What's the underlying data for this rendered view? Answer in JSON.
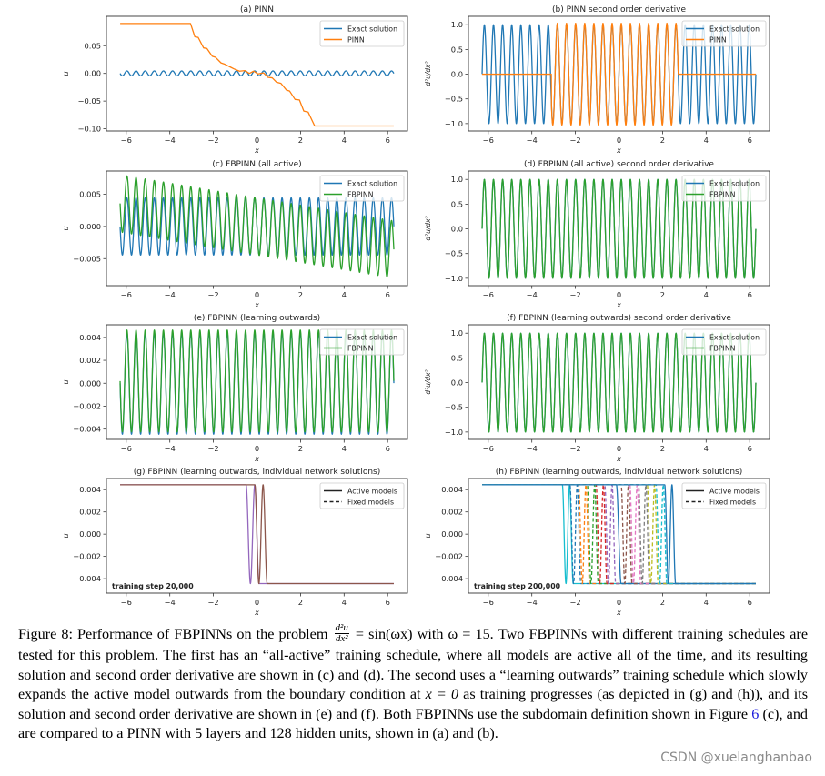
{
  "colors": {
    "blue": "#1f77b4",
    "orange": "#ff7f0e",
    "green": "#2ca02c",
    "red": "#d62728",
    "purple": "#9467bd",
    "brown": "#8c564b",
    "pink": "#e377c2",
    "gray": "#7f7f7f",
    "olive": "#bcbd22",
    "cyan": "#17becf"
  },
  "chart_data": [
    {
      "id": "a",
      "type": "line",
      "title": "(a) PINN",
      "xlabel": "x",
      "ylabel": "u",
      "xlim": [
        -6.91,
        6.91
      ],
      "ylim": [
        -0.104,
        0.103
      ],
      "xticks": [
        -6,
        -4,
        -2,
        0,
        2,
        4,
        6
      ],
      "xtick_labels": [
        "−6",
        "−4",
        "−2",
        "0",
        "2",
        "4",
        "6"
      ],
      "yticks": [
        0.05,
        0,
        -0.05,
        -0.1
      ],
      "ytick_labels": [
        "0.05",
        "0.00",
        "−0.05",
        "−0.10"
      ],
      "legend": {
        "placement": "upper-right",
        "entries": [
          {
            "label": "Exact solution",
            "color": "#1f77b4",
            "style": "solid"
          },
          {
            "label": "PINN",
            "color": "#ff7f0e",
            "style": "solid"
          }
        ]
      },
      "series": [
        {
          "name": "Exact solution",
          "color": "#1f77b4",
          "expression": "-sin(15*x)/225",
          "x_range": [
            -6.283,
            6.283
          ]
        },
        {
          "name": "PINN",
          "color": "#ff7f0e",
          "points": [
            [
              -6.28,
              0.09
            ],
            [
              -3.05,
              0.09
            ],
            [
              -2.85,
              0.066
            ],
            [
              -2.7,
              0.065
            ],
            [
              -2.45,
              0.046
            ],
            [
              -2.3,
              0.045
            ],
            [
              -2.05,
              0.031
            ],
            [
              -1.9,
              0.029
            ],
            [
              -1.65,
              0.019
            ],
            [
              -1.5,
              0.017
            ],
            [
              -1.2,
              0.011
            ],
            [
              -1.05,
              0.008
            ],
            [
              -0.8,
              0.004
            ],
            [
              -0.55,
              0.005
            ],
            [
              -0.35,
              0.0
            ],
            [
              -0.15,
              0.004
            ],
            [
              0.05,
              -0.001
            ],
            [
              0.3,
              0.001
            ],
            [
              0.5,
              -0.007
            ],
            [
              0.7,
              -0.008
            ],
            [
              0.9,
              -0.016
            ],
            [
              1.1,
              -0.018
            ],
            [
              1.35,
              -0.03
            ],
            [
              1.5,
              -0.032
            ],
            [
              1.75,
              -0.047
            ],
            [
              1.95,
              -0.048
            ],
            [
              2.15,
              -0.068
            ],
            [
              2.35,
              -0.07
            ],
            [
              2.65,
              -0.095
            ],
            [
              6.28,
              -0.095
            ]
          ]
        }
      ]
    },
    {
      "id": "b",
      "type": "line",
      "title": "(b) PINN second order derivative",
      "xlabel": "x",
      "ylabel": "d²u/dx²",
      "xlim": [
        -6.91,
        6.91
      ],
      "ylim": [
        -1.15,
        1.17
      ],
      "xticks": [
        -6,
        -4,
        -2,
        0,
        2,
        4,
        6
      ],
      "xtick_labels": [
        "−6",
        "−4",
        "−2",
        "0",
        "2",
        "4",
        "6"
      ],
      "yticks": [
        1,
        0.5,
        0,
        -0.5,
        -1
      ],
      "ytick_labels": [
        "1.0",
        "0.5",
        "0.0",
        "−0.5",
        "−1.0"
      ],
      "legend": {
        "placement": "upper-right",
        "entries": [
          {
            "label": "Exact solution",
            "color": "#1f77b4",
            "style": "solid"
          },
          {
            "label": "PINN",
            "color": "#ff7f0e",
            "style": "solid"
          }
        ]
      },
      "series": [
        {
          "name": "Exact solution",
          "color": "#1f77b4",
          "expression": "sin(15*x)",
          "x_range": [
            -6.283,
            6.283
          ]
        },
        {
          "name": "PINN",
          "color": "#ff7f0e",
          "expression": "(x>-3.1&&x<2.72)?1.03*sin(15*x):0",
          "x_range": [
            -6.283,
            6.283
          ]
        }
      ]
    },
    {
      "id": "c",
      "type": "line",
      "title": "(c) FBPINN (all active)",
      "xlabel": "x",
      "ylabel": "u",
      "xlim": [
        -6.91,
        6.91
      ],
      "ylim": [
        -0.0092,
        0.0086
      ],
      "xticks": [
        -6,
        -4,
        -2,
        0,
        2,
        4,
        6
      ],
      "xtick_labels": [
        "−6",
        "−4",
        "−2",
        "0",
        "2",
        "4",
        "6"
      ],
      "yticks": [
        0.005,
        0,
        -0.005
      ],
      "ytick_labels": [
        "0.005",
        "0.000",
        "−0.005"
      ],
      "legend": {
        "placement": "upper-right",
        "entries": [
          {
            "label": "Exact solution",
            "color": "#1f77b4",
            "style": "solid"
          },
          {
            "label": "FBPINN",
            "color": "#2ca02c",
            "style": "solid"
          }
        ]
      },
      "series": [
        {
          "name": "Exact solution",
          "color": "#1f77b4",
          "expression": "-sin(15*x)/225",
          "x_range": [
            -6.283,
            6.283
          ]
        },
        {
          "name": "FBPINN",
          "color": "#2ca02c",
          "expression": "-sin(15*x)/225-0.00057*x",
          "x_range": [
            -6.283,
            6.283
          ]
        }
      ]
    },
    {
      "id": "d",
      "type": "line",
      "title": "(d) FBPINN (all active) second order derivative",
      "xlabel": "x",
      "ylabel": "d²u/dx²",
      "xlim": [
        -6.91,
        6.91
      ],
      "ylim": [
        -1.15,
        1.17
      ],
      "xticks": [
        -6,
        -4,
        -2,
        0,
        2,
        4,
        6
      ],
      "xtick_labels": [
        "−6",
        "−4",
        "−2",
        "0",
        "2",
        "4",
        "6"
      ],
      "yticks": [
        1,
        0.5,
        0,
        -0.5,
        -1
      ],
      "ytick_labels": [
        "1.0",
        "0.5",
        "0.0",
        "−0.5",
        "−1.0"
      ],
      "legend": {
        "placement": "upper-right",
        "entries": [
          {
            "label": "Exact solution",
            "color": "#1f77b4",
            "style": "solid"
          },
          {
            "label": "FBPINN",
            "color": "#2ca02c",
            "style": "solid"
          }
        ]
      },
      "series": [
        {
          "name": "Exact solution",
          "color": "#1f77b4",
          "expression": "sin(15*x)",
          "x_range": [
            -6.283,
            6.283
          ]
        },
        {
          "name": "FBPINN",
          "color": "#2ca02c",
          "expression": "sin(15*x)",
          "x_range": [
            -6.283,
            6.283
          ]
        }
      ]
    },
    {
      "id": "e",
      "type": "line",
      "title": "(e) FBPINN (learning outwards)",
      "xlabel": "x",
      "ylabel": "u",
      "xlim": [
        -6.91,
        6.91
      ],
      "ylim": [
        -0.0049,
        0.0051
      ],
      "xticks": [
        -6,
        -4,
        -2,
        0,
        2,
        4,
        6
      ],
      "xtick_labels": [
        "−6",
        "−4",
        "−2",
        "0",
        "2",
        "4",
        "6"
      ],
      "yticks": [
        0.004,
        0.002,
        0,
        -0.002,
        -0.004
      ],
      "ytick_labels": [
        "0.004",
        "0.002",
        "0.000",
        "−0.002",
        "−0.004"
      ],
      "legend": {
        "placement": "upper-right",
        "entries": [
          {
            "label": "Exact solution",
            "color": "#1f77b4",
            "style": "solid"
          },
          {
            "label": "FBPINN",
            "color": "#2ca02c",
            "style": "solid"
          }
        ]
      },
      "series": [
        {
          "name": "Exact solution",
          "color": "#1f77b4",
          "expression": "-sin(15*x)/225",
          "x_range": [
            -6.283,
            6.283
          ]
        },
        {
          "name": "FBPINN",
          "color": "#2ca02c",
          "expression": "-sin(15*x)/225+0.0002",
          "x_range": [
            -6.283,
            6.283
          ]
        }
      ]
    },
    {
      "id": "f",
      "type": "line",
      "title": "(f) FBPINN (learning outwards) second order derivative",
      "xlabel": "x",
      "ylabel": "d²u/dx²",
      "xlim": [
        -6.91,
        6.91
      ],
      "ylim": [
        -1.15,
        1.17
      ],
      "xticks": [
        -6,
        -4,
        -2,
        0,
        2,
        4,
        6
      ],
      "xtick_labels": [
        "−6",
        "−4",
        "−2",
        "0",
        "2",
        "4",
        "6"
      ],
      "yticks": [
        1,
        0.5,
        0,
        -0.5,
        -1
      ],
      "ytick_labels": [
        "1.0",
        "0.5",
        "0.0",
        "−0.5",
        "−1.0"
      ],
      "legend": {
        "placement": "upper-right",
        "entries": [
          {
            "label": "Exact solution",
            "color": "#1f77b4",
            "style": "solid"
          },
          {
            "label": "FBPINN",
            "color": "#2ca02c",
            "style": "solid"
          }
        ]
      },
      "series": [
        {
          "name": "Exact solution",
          "color": "#1f77b4",
          "expression": "sin(15*x)",
          "x_range": [
            -6.283,
            6.283
          ]
        },
        {
          "name": "FBPINN",
          "color": "#2ca02c",
          "expression": "sin(15*x)",
          "x_range": [
            -6.283,
            6.283
          ]
        }
      ]
    },
    {
      "id": "g",
      "type": "line",
      "title": "(g) FBPINN (learning outwards, individual network solutions)",
      "xlabel": "x",
      "ylabel": "u",
      "xlim": [
        -6.91,
        6.91
      ],
      "ylim": [
        -0.0053,
        0.005
      ],
      "xticks": [
        -6,
        -4,
        -2,
        0,
        2,
        4,
        6
      ],
      "xtick_labels": [
        "−6",
        "−4",
        "−2",
        "0",
        "2",
        "4",
        "6"
      ],
      "yticks": [
        0.004,
        0.002,
        0,
        -0.002,
        -0.004
      ],
      "ytick_labels": [
        "0.004",
        "0.002",
        "0.000",
        "−0.002",
        "−0.004"
      ],
      "annotation": "training step 20,000",
      "legend": {
        "placement": "upper-right",
        "entries": [
          {
            "label": "Active models",
            "color": "#222222",
            "style": "solid"
          },
          {
            "label": "Fixed models",
            "color": "#222222",
            "style": "dashed"
          }
        ]
      },
      "level": 0.00444,
      "x_range": [
        -6.283,
        6.283
      ],
      "models": [
        {
          "color": "#9467bd",
          "style": "solid",
          "range": [
            -0.5,
            0.1
          ],
          "half_cycles": 3
        },
        {
          "color": "#8c564b",
          "style": "solid",
          "range": [
            -0.1,
            0.47
          ],
          "half_cycles": 3
        }
      ]
    },
    {
      "id": "h",
      "type": "line",
      "title": "(h) FBPINN (learning outwards, individual network solutions)",
      "xlabel": "x",
      "ylabel": "u",
      "xlim": [
        -6.91,
        6.91
      ],
      "ylim": [
        -0.0053,
        0.005
      ],
      "xticks": [
        -6,
        -4,
        -2,
        0,
        2,
        4,
        6
      ],
      "xtick_labels": [
        "−6",
        "−4",
        "−2",
        "0",
        "2",
        "4",
        "6"
      ],
      "yticks": [
        0.004,
        0.002,
        0,
        -0.002,
        -0.004
      ],
      "ytick_labels": [
        "0.004",
        "0.002",
        "0.000",
        "−0.002",
        "−0.004"
      ],
      "annotation": "training step 200,000",
      "legend": {
        "placement": "upper-right",
        "entries": [
          {
            "label": "Active models",
            "color": "#222222",
            "style": "solid"
          },
          {
            "label": "Fixed models",
            "color": "#222222",
            "style": "dashed"
          }
        ]
      },
      "level": 0.00444,
      "x_range": [
        -6.283,
        6.283
      ],
      "models": [
        {
          "color": "#17becf",
          "style": "solid",
          "range": [
            -2.6,
            -2.1
          ],
          "half_cycles": 3
        },
        {
          "color": "#1f77b4",
          "style": "dashed",
          "range": [
            -2.25,
            -1.75
          ],
          "half_cycles": 3
        },
        {
          "color": "#ff7f0e",
          "style": "dashed",
          "range": [
            -1.85,
            -1.35
          ],
          "half_cycles": 3
        },
        {
          "color": "#2ca02c",
          "style": "dashed",
          "range": [
            -1.45,
            -0.95
          ],
          "half_cycles": 3
        },
        {
          "color": "#d62728",
          "style": "dashed",
          "range": [
            -1.05,
            -0.55
          ],
          "half_cycles": 3
        },
        {
          "color": "#9467bd",
          "style": "dashed",
          "range": [
            -0.65,
            -0.15
          ],
          "half_cycles": 3
        },
        {
          "color": "#1f77b4",
          "style": "solid",
          "range": [
            -0.12,
            0.1
          ],
          "half_cycles": 1
        },
        {
          "color": "#8c564b",
          "style": "dashed",
          "range": [
            0.1,
            0.6
          ],
          "half_cycles": 3
        },
        {
          "color": "#e377c2",
          "style": "dashed",
          "range": [
            0.5,
            1.0
          ],
          "half_cycles": 3
        },
        {
          "color": "#7f7f7f",
          "style": "dashed",
          "range": [
            0.9,
            1.4
          ],
          "half_cycles": 3
        },
        {
          "color": "#bcbd22",
          "style": "dashed",
          "range": [
            1.3,
            1.8
          ],
          "half_cycles": 3
        },
        {
          "color": "#17becf",
          "style": "dashed",
          "range": [
            1.7,
            2.2
          ],
          "half_cycles": 3
        },
        {
          "color": "#1f77b4",
          "style": "solid",
          "range": [
            2.1,
            2.6
          ],
          "half_cycles": 3
        }
      ]
    }
  ],
  "caption": {
    "p1": "Figure 8: Performance of FBPINNs on the problem ",
    "frac_num": "d²u",
    "frac_den": "dx²",
    "p2": " = sin(ωx) with ω = 15. Two FBPINNs with different training schedules are tested for this problem. The first has an “all-active” training schedule, where all models are active all of the time, and its resulting solution and second order derivative are shown in (c) and (d). The second uses a “learning outwards” training schedule which slowly expands the active model outwards from the boundary condition at ",
    "math_x0": "x = 0",
    "p3": " as training progresses (as depicted in (g) and (h)), and its solution and second order derivative are shown in (e) and (f). Both FBPINNs use the subdomain definition shown in Figure ",
    "fig_link": "6",
    "p4": " (c), and are compared to a PINN with 5 layers and 128 hidden units, shown in (a) and (b)."
  },
  "watermark": "CSDN @xuelanghanbao"
}
